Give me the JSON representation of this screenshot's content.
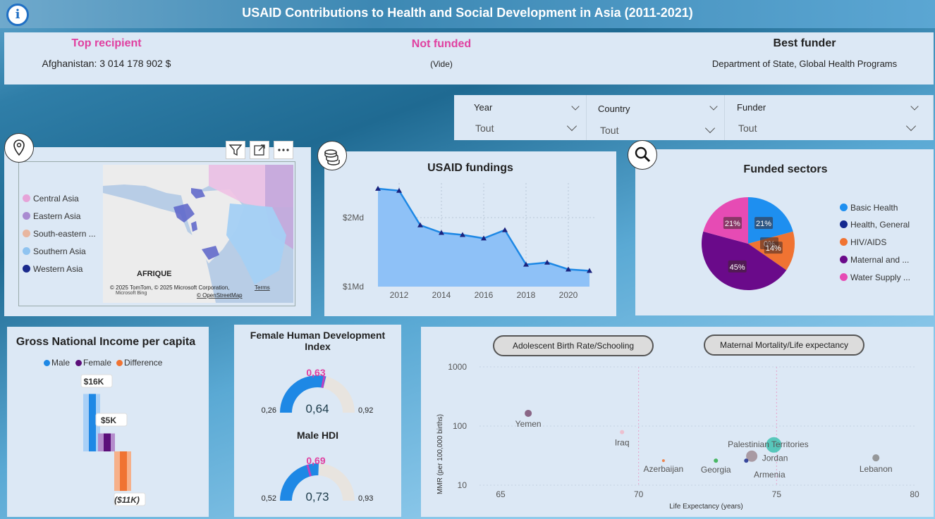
{
  "header": {
    "title": "USAID Contributions to Health and Social Development in Asia (2011-2021)",
    "info_glyph": "i"
  },
  "kpis": {
    "top_recipient_label": "Top recipient",
    "top_recipient_value": "Afghanistan: 3 014 178 902 $",
    "not_funded_label": "Not funded",
    "not_funded_value": "(Vide)",
    "best_funder_label": "Best funder",
    "best_funder_value": "Department of State, Global Health Programs"
  },
  "slicers": {
    "year": {
      "title": "Year",
      "value": "Tout"
    },
    "country": {
      "title": "Country",
      "value": "Tout"
    },
    "funder": {
      "title": "Funder",
      "value": "Tout"
    }
  },
  "map": {
    "legend": [
      "Central Asia",
      "Eastern Asia",
      "South-eastern ...",
      "Southern Asia",
      "Western Asia"
    ],
    "legend_colors": [
      "#e6a3d8",
      "#a98bd1",
      "#e8b6a0",
      "#8fc3f0",
      "#1a2a8c"
    ],
    "region_label": "AFRIQUE",
    "attribution": "© 2025 TomTom, © 2025 Microsoft Corporation,",
    "terms": "Terms",
    "osm": "© OpenStreetMap",
    "bing": "Microsoft Bing"
  },
  "fundings": {
    "title": "USAID fundings",
    "chart_data": {
      "type": "area",
      "x": [
        2011,
        2012,
        2013,
        2014,
        2015,
        2016,
        2017,
        2018,
        2019,
        2020,
        2021
      ],
      "y_labels": [
        "$2Md",
        "$1Md"
      ],
      "x_ticks": [
        "2012",
        "2014",
        "2016",
        "2018",
        "2020"
      ],
      "values": [
        2.42,
        2.39,
        1.89,
        1.78,
        1.75,
        1.7,
        1.82,
        1.32,
        1.35,
        1.25,
        1.23
      ],
      "color": "#1e88e5"
    }
  },
  "sectors": {
    "title": "Funded sectors",
    "chart_data": {
      "type": "pie",
      "categories": [
        "Basic Health",
        "Health, General",
        "HIV/AIDS",
        "Maternal and ...",
        "Water Supply ..."
      ],
      "values": [
        21,
        0,
        14,
        45,
        21
      ],
      "labels": [
        "21%",
        "0%",
        "14%",
        "45%",
        "21%"
      ],
      "colors": [
        "#1e8ff0",
        "#14288f",
        "#f07332",
        "#6a0a8a",
        "#e64bb4"
      ]
    }
  },
  "gni": {
    "title": "Gross National Income per capita",
    "legend": [
      "Male",
      "Female",
      "Difference"
    ],
    "legend_colors": [
      "#1e88e5",
      "#5c0f7a",
      "#f07332"
    ],
    "chart_data": {
      "type": "bar",
      "categories": [
        "Male",
        "Female",
        "Difference"
      ],
      "values": [
        16,
        5,
        -11
      ],
      "labels": [
        "$16K",
        "$5K",
        "($11K)"
      ]
    }
  },
  "hdi": {
    "female_title": "Female Human Development Index",
    "female": {
      "value": 0.64,
      "value_label": "0,64",
      "target": 0.63,
      "target_label": "0,63",
      "min_label": "0,26",
      "max_label": "0,92",
      "min": 0.26,
      "max": 0.92
    },
    "male_title": "Male HDI",
    "male": {
      "value": 0.73,
      "value_label": "0,73",
      "target": 0.69,
      "target_label": "0,69",
      "min_label": "0,52",
      "max_label": "0,93",
      "min": 0.52,
      "max": 0.93
    }
  },
  "scatter": {
    "button_1": "Adolescent Birth Rate/Schooling",
    "button_2": "Maternal Mortality/Life expectancy",
    "chart_data": {
      "type": "scatter",
      "xlabel": "Life Expectancy (years)",
      "ylabel": "MMR (per 100,000 births)",
      "x_ticks": [
        "65",
        "70",
        "75",
        "80"
      ],
      "y_ticks": [
        "1000",
        "100",
        "10"
      ],
      "xlim": [
        65,
        80
      ],
      "ylog": true,
      "points": [
        {
          "name": "Yemen",
          "x": 66.0,
          "y": 164,
          "color": "#7b4f72"
        },
        {
          "name": "Iraq",
          "x": 69.4,
          "y": 79,
          "color": "#f0b8c8"
        },
        {
          "name": "Palestinian Territories",
          "x": 74.9,
          "y": 48,
          "color": "#3fc1b0"
        },
        {
          "name": "Jordan",
          "x": 74.1,
          "y": 31,
          "color": "#a08c94"
        },
        {
          "name": "Armenia",
          "x": 73.9,
          "y": 26,
          "color": "#1a2a8c"
        },
        {
          "name": "Georgia",
          "x": 72.8,
          "y": 26,
          "color": "#2fae4a"
        },
        {
          "name": "Azerbaijan",
          "x": 70.9,
          "y": 26,
          "color": "#f07332"
        },
        {
          "name": "Lebanon",
          "x": 78.6,
          "y": 29,
          "color": "#888888"
        }
      ]
    }
  }
}
